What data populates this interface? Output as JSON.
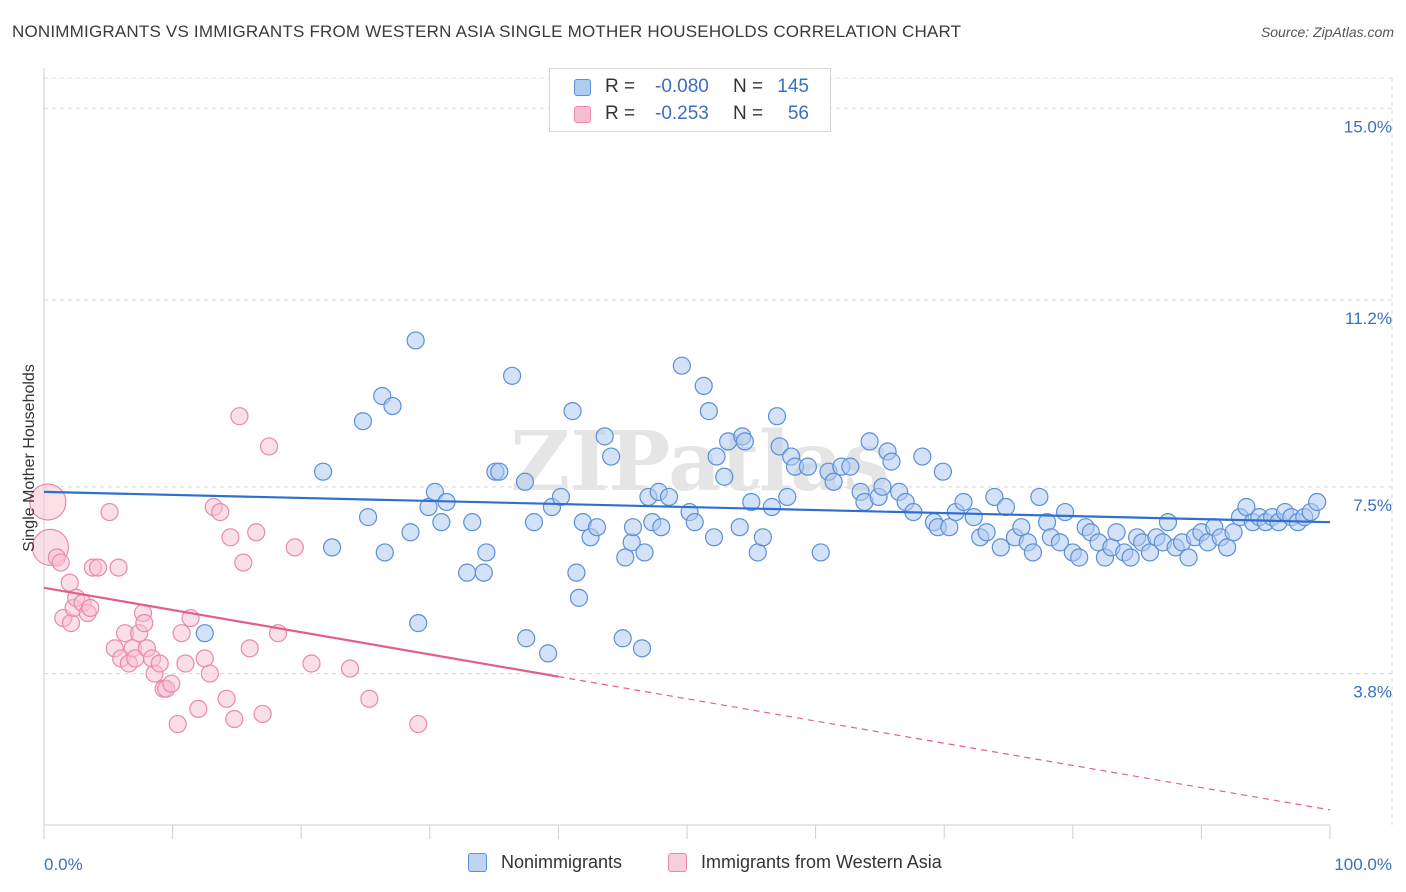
{
  "header": {
    "title": "NONIMMIGRANTS VS IMMIGRANTS FROM WESTERN ASIA SINGLE MOTHER HOUSEHOLDS CORRELATION CHART",
    "source": "Source: ZipAtlas.com"
  },
  "watermark": "ZIPatlas",
  "legend_top": {
    "rows": [
      {
        "r_label": "R =",
        "r_value": "-0.080",
        "n_label": "N =",
        "n_value": "145"
      },
      {
        "r_label": "R =",
        "r_value": "-0.253",
        "n_label": "N =",
        "n_value": "56"
      }
    ]
  },
  "legend_bottom": {
    "items": [
      "Nonimmigrants",
      "Immigrants from Western Asia"
    ]
  },
  "colors": {
    "blue_fill": "#aecbf0",
    "blue_stroke": "#5b8fd8",
    "blue_line": "#2f6fcf",
    "pink_fill": "#f5bfd0",
    "pink_stroke": "#e98aa8",
    "pink_line": "#e0608c",
    "grid": "#d8d8d8",
    "tick_text": "#3a6fc4"
  },
  "chart_data": {
    "type": "scatter",
    "title": "NONIMMIGRANTS VS IMMIGRANTS FROM WESTERN ASIA SINGLE MOTHER HOUSEHOLDS CORRELATION CHART",
    "xlabel": "",
    "ylabel": "Single Mother Households",
    "xlim": [
      0,
      100
    ],
    "ylim": [
      0.8,
      15.6
    ],
    "x_tick_labels": [
      "0.0%",
      "100.0%"
    ],
    "y_ticks": [
      3.8,
      7.5,
      11.2,
      15.0
    ],
    "y_tick_labels": [
      "3.8%",
      "7.5%",
      "11.2%",
      "15.0%"
    ],
    "grid": true,
    "legend_position": "top-center",
    "series": [
      {
        "name": "Nonimmigrants",
        "color": "#5b8fd8",
        "trend": {
          "x": [
            0,
            100
          ],
          "y": [
            7.4,
            6.8
          ],
          "dashed_from": null
        },
        "points": [
          [
            12.5,
            4.6
          ],
          [
            21.7,
            7.8
          ],
          [
            22.4,
            6.3
          ],
          [
            24.8,
            8.8
          ],
          [
            25.2,
            6.9
          ],
          [
            26.3,
            9.3
          ],
          [
            26.5,
            6.2
          ],
          [
            27.1,
            9.1
          ],
          [
            28.5,
            6.6
          ],
          [
            28.9,
            10.4
          ],
          [
            29.1,
            4.8
          ],
          [
            29.9,
            7.1
          ],
          [
            30.4,
            7.4
          ],
          [
            30.9,
            6.8
          ],
          [
            31.3,
            7.2
          ],
          [
            32.9,
            5.8
          ],
          [
            33.3,
            6.8
          ],
          [
            34.2,
            5.8
          ],
          [
            34.4,
            6.2
          ],
          [
            35.1,
            7.8
          ],
          [
            35.4,
            7.8
          ],
          [
            36.4,
            9.7
          ],
          [
            37.4,
            7.6
          ],
          [
            37.5,
            4.5
          ],
          [
            38.1,
            6.8
          ],
          [
            39.2,
            4.2
          ],
          [
            39.5,
            7.1
          ],
          [
            40.2,
            7.3
          ],
          [
            41.1,
            9.0
          ],
          [
            41.4,
            5.8
          ],
          [
            41.6,
            5.3
          ],
          [
            41.9,
            6.8
          ],
          [
            42.5,
            6.5
          ],
          [
            43.0,
            6.7
          ],
          [
            43.6,
            8.5
          ],
          [
            44.1,
            8.1
          ],
          [
            45.0,
            4.5
          ],
          [
            45.2,
            6.1
          ],
          [
            45.7,
            6.4
          ],
          [
            45.8,
            6.7
          ],
          [
            46.5,
            4.3
          ],
          [
            46.7,
            6.2
          ],
          [
            47.0,
            7.3
          ],
          [
            47.3,
            6.8
          ],
          [
            47.8,
            7.4
          ],
          [
            48.0,
            6.7
          ],
          [
            48.6,
            7.3
          ],
          [
            49.6,
            9.9
          ],
          [
            50.2,
            7.0
          ],
          [
            50.6,
            6.8
          ],
          [
            51.3,
            9.5
          ],
          [
            51.7,
            9.0
          ],
          [
            52.1,
            6.5
          ],
          [
            52.3,
            8.1
          ],
          [
            52.9,
            7.7
          ],
          [
            53.2,
            8.4
          ],
          [
            54.1,
            6.7
          ],
          [
            54.3,
            8.5
          ],
          [
            54.5,
            8.4
          ],
          [
            55.0,
            7.2
          ],
          [
            55.5,
            6.2
          ],
          [
            55.9,
            6.5
          ],
          [
            56.6,
            7.1
          ],
          [
            57.0,
            8.9
          ],
          [
            57.2,
            8.3
          ],
          [
            57.8,
            7.3
          ],
          [
            58.1,
            8.1
          ],
          [
            58.4,
            7.9
          ],
          [
            59.4,
            7.9
          ],
          [
            60.4,
            6.2
          ],
          [
            61.0,
            7.8
          ],
          [
            61.4,
            7.6
          ],
          [
            62.0,
            7.9
          ],
          [
            62.7,
            7.9
          ],
          [
            63.5,
            7.4
          ],
          [
            63.8,
            7.2
          ],
          [
            64.2,
            8.4
          ],
          [
            64.9,
            7.3
          ],
          [
            65.2,
            7.5
          ],
          [
            65.6,
            8.2
          ],
          [
            65.9,
            8.0
          ],
          [
            66.5,
            7.4
          ],
          [
            67.0,
            7.2
          ],
          [
            67.6,
            7.0
          ],
          [
            68.3,
            8.1
          ],
          [
            69.2,
            6.8
          ],
          [
            69.5,
            6.7
          ],
          [
            69.9,
            7.8
          ],
          [
            70.4,
            6.7
          ],
          [
            70.9,
            7.0
          ],
          [
            71.5,
            7.2
          ],
          [
            72.3,
            6.9
          ],
          [
            72.8,
            6.5
          ],
          [
            73.3,
            6.6
          ],
          [
            73.9,
            7.3
          ],
          [
            74.4,
            6.3
          ],
          [
            74.8,
            7.1
          ],
          [
            75.5,
            6.5
          ],
          [
            76.0,
            6.7
          ],
          [
            76.5,
            6.4
          ],
          [
            76.9,
            6.2
          ],
          [
            77.4,
            7.3
          ],
          [
            78.0,
            6.8
          ],
          [
            78.3,
            6.5
          ],
          [
            79.0,
            6.4
          ],
          [
            79.4,
            7.0
          ],
          [
            80.0,
            6.2
          ],
          [
            80.5,
            6.1
          ],
          [
            81.0,
            6.7
          ],
          [
            81.4,
            6.6
          ],
          [
            82.0,
            6.4
          ],
          [
            82.5,
            6.1
          ],
          [
            83.0,
            6.3
          ],
          [
            83.4,
            6.6
          ],
          [
            84.0,
            6.2
          ],
          [
            84.5,
            6.1
          ],
          [
            85.0,
            6.5
          ],
          [
            85.4,
            6.4
          ],
          [
            86.0,
            6.2
          ],
          [
            86.5,
            6.5
          ],
          [
            87.0,
            6.4
          ],
          [
            87.4,
            6.8
          ],
          [
            88.0,
            6.3
          ],
          [
            88.5,
            6.4
          ],
          [
            89.0,
            6.1
          ],
          [
            89.5,
            6.5
          ],
          [
            90.0,
            6.6
          ],
          [
            90.5,
            6.4
          ],
          [
            91.0,
            6.7
          ],
          [
            91.5,
            6.5
          ],
          [
            92.0,
            6.3
          ],
          [
            92.5,
            6.6
          ],
          [
            93.0,
            6.9
          ],
          [
            93.5,
            7.1
          ],
          [
            94.0,
            6.8
          ],
          [
            94.5,
            6.9
          ],
          [
            95.0,
            6.8
          ],
          [
            95.5,
            6.9
          ],
          [
            96.0,
            6.8
          ],
          [
            96.5,
            7.0
          ],
          [
            97.0,
            6.9
          ],
          [
            97.5,
            6.8
          ],
          [
            98.0,
            6.9
          ],
          [
            98.5,
            7.0
          ],
          [
            99.0,
            7.2
          ]
        ]
      },
      {
        "name": "Immigrants from Western Asia",
        "color": "#e98aa8",
        "trend": {
          "x": [
            0,
            100
          ],
          "y": [
            5.5,
            1.1
          ],
          "dashed_from": 40
        },
        "points": [
          [
            0.3,
            7.2
          ],
          [
            0.5,
            6.3
          ],
          [
            1.0,
            6.1
          ],
          [
            1.3,
            6.0
          ],
          [
            1.5,
            4.9
          ],
          [
            2.0,
            5.6
          ],
          [
            2.1,
            4.8
          ],
          [
            2.3,
            5.1
          ],
          [
            2.5,
            5.3
          ],
          [
            3.0,
            5.2
          ],
          [
            3.4,
            5.0
          ],
          [
            3.6,
            5.1
          ],
          [
            3.8,
            5.9
          ],
          [
            4.2,
            5.9
          ],
          [
            5.1,
            7.0
          ],
          [
            5.5,
            4.3
          ],
          [
            5.8,
            5.9
          ],
          [
            6.0,
            4.1
          ],
          [
            6.3,
            4.6
          ],
          [
            6.6,
            4.0
          ],
          [
            6.9,
            4.3
          ],
          [
            7.1,
            4.1
          ],
          [
            7.4,
            4.6
          ],
          [
            7.7,
            5.0
          ],
          [
            7.8,
            4.8
          ],
          [
            8.0,
            4.3
          ],
          [
            8.4,
            4.1
          ],
          [
            8.6,
            3.8
          ],
          [
            9.0,
            4.0
          ],
          [
            9.3,
            3.5
          ],
          [
            9.5,
            3.5
          ],
          [
            9.9,
            3.6
          ],
          [
            10.4,
            2.8
          ],
          [
            10.7,
            4.6
          ],
          [
            11.0,
            4.0
          ],
          [
            11.4,
            4.9
          ],
          [
            12.0,
            3.1
          ],
          [
            12.5,
            4.1
          ],
          [
            12.9,
            3.8
          ],
          [
            13.2,
            7.1
          ],
          [
            13.7,
            7.0
          ],
          [
            14.2,
            3.3
          ],
          [
            14.5,
            6.5
          ],
          [
            14.8,
            2.9
          ],
          [
            15.2,
            8.9
          ],
          [
            15.5,
            6.0
          ],
          [
            16.0,
            4.3
          ],
          [
            16.5,
            6.6
          ],
          [
            17.0,
            3.0
          ],
          [
            17.5,
            8.3
          ],
          [
            18.2,
            4.6
          ],
          [
            19.5,
            6.3
          ],
          [
            20.8,
            4.0
          ],
          [
            23.8,
            3.9
          ],
          [
            25.3,
            3.3
          ],
          [
            29.1,
            2.8
          ]
        ]
      }
    ]
  }
}
